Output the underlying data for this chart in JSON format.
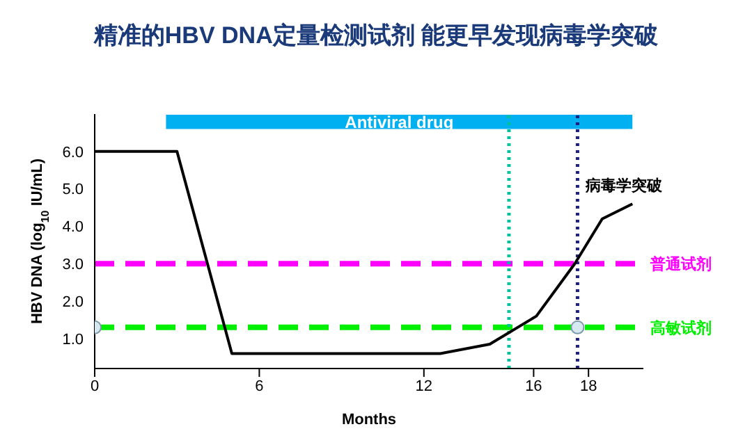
{
  "chart_data": {
    "type": "line",
    "title": "精准的HBV DNA定量检测试剂 能更早发现病毒学突破",
    "xlabel": "Months",
    "ylabel": "HBV DNA (log$_{10}$ IU/mL)",
    "series": [
      {
        "color": "#000000",
        "x": [
          0,
          3,
          5,
          12.6,
          14.4,
          16.1,
          17.5,
          18.5,
          19.6
        ],
        "values": [
          6.0,
          6.0,
          0.6,
          0.6,
          0.85,
          1.6,
          3.0,
          4.2,
          4.6
        ]
      },
      {
        "type": "scatter",
        "color": "#d8e8f0",
        "x": [
          0,
          17.6
        ],
        "values": [
          1.3,
          1.3
        ]
      }
    ],
    "xlim": [
      0,
      20
    ],
    "xticks": [
      0,
      6,
      12,
      16,
      18
    ],
    "ylim": [
      0.2,
      7.0
    ],
    "yticks": [
      {
        "value": 1,
        "label": "1.0"
      },
      {
        "value": 2,
        "label": "2.0"
      },
      {
        "value": 3,
        "label": "3.0"
      },
      {
        "value": 4,
        "label": "4.0"
      },
      {
        "value": 5,
        "label": "5.0"
      },
      {
        "value": 6,
        "label": "6.0"
      }
    ],
    "ref_lines": [
      {
        "axis": "y",
        "value": 3.0,
        "label": "普通试剂",
        "color": "#ff00ff",
        "line_style": "dashed"
      },
      {
        "axis": "y",
        "value": 1.3,
        "label": "高敏试剂",
        "color": "#00ee00",
        "line_style": "dashed"
      },
      {
        "axis": "x",
        "value": 15.1,
        "color": "#00c0a0",
        "line_style": "dotted"
      },
      {
        "axis": "x",
        "value": 17.6,
        "color": "#202080",
        "line_style": "dotted"
      }
    ],
    "bands": [
      {
        "axis": "x",
        "from": 2.6,
        "to": 19.6,
        "label": "Antiviral drug",
        "color": "#00b0f0"
      }
    ],
    "annotations": [
      "病毒学突破"
    ],
    "grid": false
  }
}
